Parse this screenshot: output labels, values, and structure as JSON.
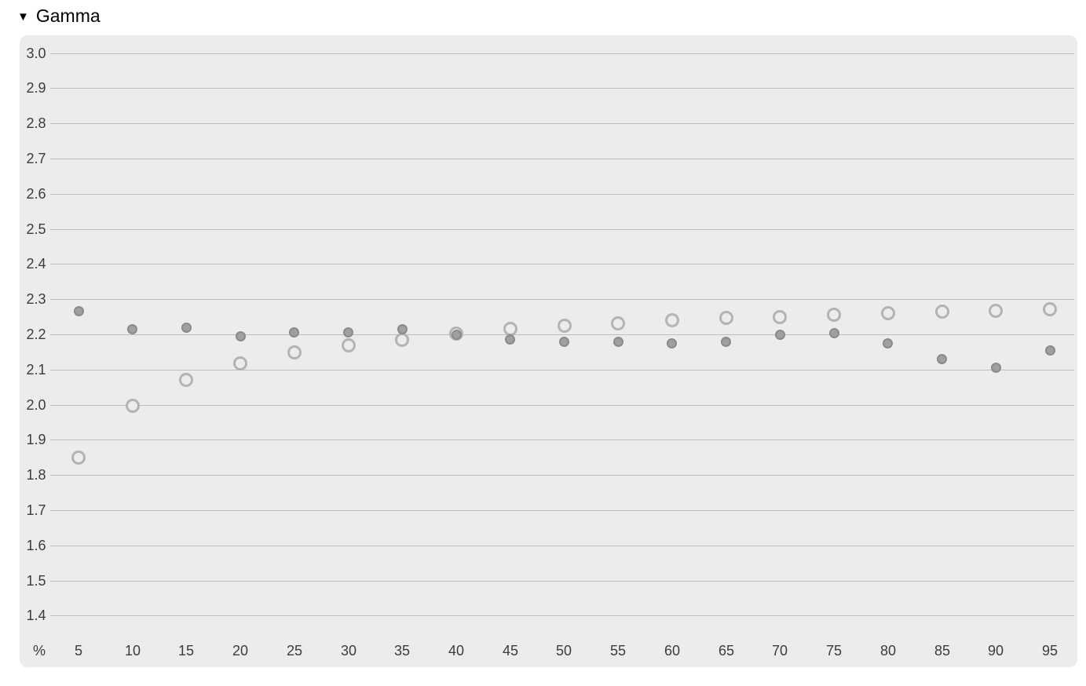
{
  "header": {
    "title": "Gamma"
  },
  "icons": {
    "collapse_triangle": "▼"
  },
  "colors": {
    "page_bg": "#ffffff",
    "panel_bg": "#ececec",
    "gridline": "#bdbdbd",
    "tick_text": "#3c3c3c",
    "title_text": "#000000",
    "filled_dot_fill": "#a0a0a0",
    "filled_dot_border": "#8a8a8a",
    "open_circle_ring": "#b3b3b3"
  },
  "chart_data": {
    "type": "scatter",
    "title": "Gamma",
    "xlabel": "%",
    "ylabel": "",
    "x": [
      5,
      10,
      15,
      20,
      25,
      30,
      35,
      40,
      45,
      50,
      55,
      60,
      65,
      70,
      75,
      80,
      85,
      90,
      95
    ],
    "xticks": [
      "5",
      "10",
      "15",
      "20",
      "25",
      "30",
      "35",
      "40",
      "45",
      "50",
      "55",
      "60",
      "65",
      "70",
      "75",
      "80",
      "85",
      "90",
      "95"
    ],
    "yticks": [
      "3.0",
      "2.9",
      "2.8",
      "2.7",
      "2.6",
      "2.5",
      "2.4",
      "2.3",
      "2.2",
      "2.1",
      "2.0",
      "1.9",
      "1.8",
      "1.7",
      "1.6",
      "1.5",
      "1.4"
    ],
    "ylim": [
      1.4,
      3.0
    ],
    "ytick_step": 0.1,
    "grid": "horizontal",
    "legend_position": "none",
    "series": [
      {
        "name": "filled-dots",
        "marker": "filled-circle",
        "values": [
          2.265,
          2.215,
          2.22,
          2.195,
          2.205,
          2.205,
          2.215,
          2.198,
          2.185,
          2.18,
          2.18,
          2.175,
          2.18,
          2.198,
          2.203,
          2.175,
          2.13,
          2.105,
          2.155
        ]
      },
      {
        "name": "open-circles",
        "marker": "open-circle",
        "values": [
          1.85,
          1.997,
          2.07,
          2.117,
          2.148,
          2.168,
          2.185,
          2.202,
          2.215,
          2.225,
          2.231,
          2.24,
          2.246,
          2.25,
          2.256,
          2.26,
          2.265,
          2.268,
          2.272
        ]
      }
    ]
  }
}
